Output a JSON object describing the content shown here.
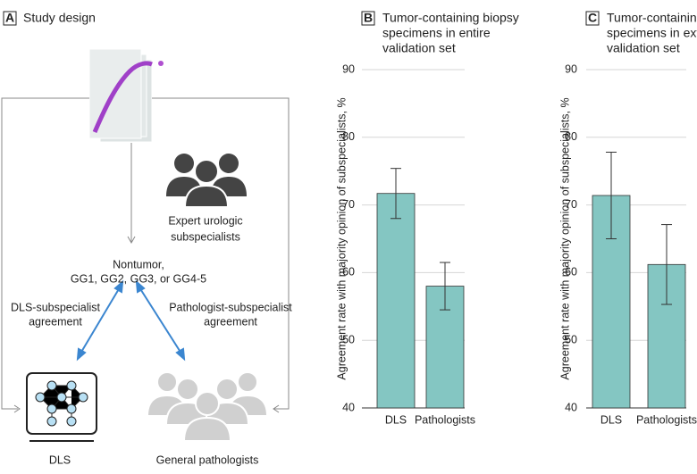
{
  "panel_a": {
    "label": "A",
    "title": "Study design",
    "experts": [
      "Expert urologic",
      "subspecialists"
    ],
    "outcome": [
      "Nontumor,",
      "GG1, GG2, GG3, or GG4-5"
    ],
    "dls_agreement": [
      "DLS-subspecialist",
      "agreement"
    ],
    "path_agreement": [
      "Pathologist-subspecialist",
      "agreement"
    ],
    "dls": "DLS",
    "pathologists": "General pathologists"
  },
  "chart_data": [
    {
      "type": "bar",
      "label": "B",
      "title_lines": [
        "Tumor-containing biopsy",
        "specimens in entire",
        "validation set"
      ],
      "y_label": "Agreement rate with majority opinion of subspecialists, %",
      "categories": [
        "DLS",
        "Pathologists"
      ],
      "values": [
        71.7,
        58.0
      ],
      "err_low": [
        68.0,
        54.5
      ],
      "err_high": [
        75.4,
        61.5
      ],
      "color": "#84c6c2",
      "ylim": [
        40,
        90
      ],
      "yticks": [
        40,
        50,
        60,
        70,
        80,
        90
      ],
      "grid": true
    },
    {
      "type": "bar",
      "label": "C",
      "title_lines": [
        "Tumor-containing biopsy",
        "specimens in external",
        "validation set"
      ],
      "y_label": "Agreement rate with majority opinion of subspecialists, %",
      "categories": [
        "DLS",
        "Pathologists"
      ],
      "values": [
        71.4,
        61.2
      ],
      "err_low": [
        65.0,
        55.3
      ],
      "err_high": [
        77.8,
        67.1
      ],
      "color": "#84c6c2",
      "ylim": [
        40,
        90
      ],
      "yticks": [
        40,
        50,
        60,
        70,
        80,
        90
      ],
      "grid": true
    }
  ]
}
